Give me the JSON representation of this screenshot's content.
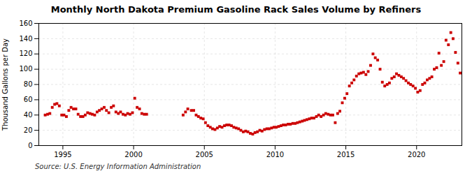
{
  "chart_data": {
    "type": "scatter",
    "title": "Monthly North Dakota Premium Gasoline Rack Sales Volume by Refiners",
    "ylabel": "Thousand Gallons per Day",
    "source": "Source: U.S. Energy Information Administration",
    "color": "#cc0000",
    "marker": "square",
    "grid": true,
    "xlim": [
      1993.3,
      2023.2
    ],
    "ylim": [
      0,
      160
    ],
    "xticks": [
      1995,
      2000,
      2005,
      2010,
      2015,
      2020
    ],
    "yticks": [
      0,
      20,
      40,
      60,
      80,
      100,
      120,
      140,
      160
    ],
    "x": [
      1993.75,
      1993.92,
      1994.08,
      1994.25,
      1994.42,
      1994.58,
      1994.75,
      1994.92,
      1995.08,
      1995.25,
      1995.42,
      1995.58,
      1995.75,
      1995.92,
      1996.08,
      1996.25,
      1996.42,
      1996.58,
      1996.75,
      1996.92,
      1997.08,
      1997.25,
      1997.42,
      1997.58,
      1997.75,
      1997.92,
      1998.08,
      1998.25,
      1998.42,
      1998.58,
      1998.75,
      1998.92,
      1999.08,
      1999.25,
      1999.42,
      1999.58,
      1999.75,
      1999.92,
      2000.08,
      2000.25,
      2000.42,
      2000.58,
      2000.75,
      2000.92,
      2003.5,
      2003.67,
      2003.83,
      2004.08,
      2004.25,
      2004.42,
      2004.58,
      2004.75,
      2004.92,
      2005.08,
      2005.25,
      2005.42,
      2005.58,
      2005.75,
      2005.92,
      2006.08,
      2006.25,
      2006.42,
      2006.58,
      2006.75,
      2006.92,
      2007.08,
      2007.25,
      2007.42,
      2007.58,
      2007.75,
      2007.92,
      2008.08,
      2008.25,
      2008.42,
      2008.58,
      2008.75,
      2008.92,
      2009.08,
      2009.25,
      2009.42,
      2009.58,
      2009.75,
      2009.92,
      2010.08,
      2010.25,
      2010.42,
      2010.58,
      2010.75,
      2010.92,
      2011.08,
      2011.25,
      2011.42,
      2011.58,
      2011.75,
      2011.92,
      2012.08,
      2012.25,
      2012.42,
      2012.58,
      2012.75,
      2012.92,
      2013.08,
      2013.25,
      2013.42,
      2013.58,
      2013.75,
      2013.92,
      2014.08,
      2014.25,
      2014.42,
      2014.58,
      2014.75,
      2014.92,
      2015.08,
      2015.25,
      2015.42,
      2015.58,
      2015.75,
      2015.92,
      2016.08,
      2016.25,
      2016.42,
      2016.58,
      2016.75,
      2016.92,
      2017.08,
      2017.25,
      2017.42,
      2017.58,
      2017.75,
      2017.92,
      2018.08,
      2018.25,
      2018.42,
      2018.58,
      2018.75,
      2018.92,
      2019.08,
      2019.25,
      2019.42,
      2019.58,
      2019.75,
      2019.92,
      2020.08,
      2020.25,
      2020.42,
      2020.58,
      2020.75,
      2020.92,
      2021.08,
      2021.25,
      2021.42,
      2021.58,
      2021.75,
      2021.92,
      2022.08,
      2022.25,
      2022.42,
      2022.58,
      2022.75,
      2022.92,
      2023.08
    ],
    "values": [
      40,
      41,
      42,
      50,
      54,
      55,
      52,
      40,
      40,
      38,
      46,
      50,
      48,
      48,
      41,
      38,
      38,
      40,
      43,
      42,
      41,
      40,
      44,
      46,
      48,
      50,
      46,
      43,
      50,
      52,
      44,
      42,
      44,
      41,
      40,
      42,
      41,
      43,
      62,
      50,
      48,
      42,
      41,
      41,
      40,
      44,
      48,
      46,
      46,
      40,
      38,
      36,
      35,
      30,
      26,
      24,
      22,
      21,
      23,
      25,
      24,
      26,
      27,
      27,
      26,
      24,
      23,
      22,
      20,
      18,
      19,
      18,
      16,
      15,
      17,
      18,
      20,
      19,
      21,
      22,
      22,
      23,
      24,
      24,
      25,
      26,
      27,
      27,
      28,
      28,
      29,
      29,
      30,
      31,
      32,
      33,
      34,
      35,
      36,
      36,
      38,
      40,
      38,
      40,
      42,
      41,
      40,
      40,
      30,
      42,
      45,
      56,
      62,
      68,
      78,
      82,
      86,
      91,
      94,
      95,
      96,
      93,
      97,
      105,
      120,
      115,
      112,
      100,
      83,
      78,
      80,
      82,
      88,
      90,
      94,
      92,
      90,
      88,
      85,
      82,
      80,
      78,
      75,
      70,
      72,
      80,
      82,
      86,
      88,
      90,
      100,
      102,
      121,
      105,
      110,
      138,
      132,
      148,
      140,
      122,
      108,
      95
    ]
  }
}
